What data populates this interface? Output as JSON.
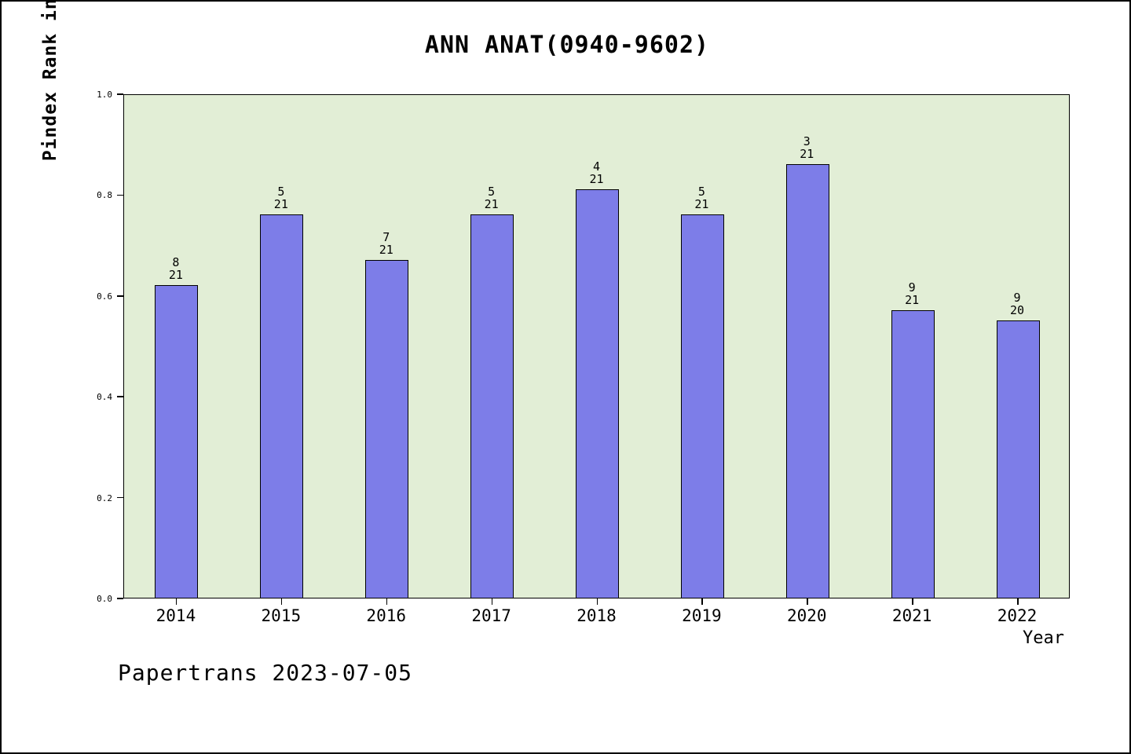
{
  "chart": {
    "title": "ANN ANAT(0940-9602)",
    "ylabel": "Pindex Rank in ANATOMY & MORPHOLOGY",
    "xlabel": "Year",
    "footer": "Papertrans 2023-07-05",
    "colors": {
      "bar_fill": "#7d7de8",
      "bar_border": "#000000",
      "plot_background": "#e2eed6",
      "page_background": "#ffffff",
      "text": "#000000"
    }
  },
  "chart_data": {
    "type": "bar",
    "title": "ANN ANAT(0940-9602)",
    "xlabel": "Year",
    "ylabel": "Pindex Rank in ANATOMY & MORPHOLOGY",
    "categories": [
      "2014",
      "2015",
      "2016",
      "2017",
      "2018",
      "2019",
      "2020",
      "2021",
      "2022"
    ],
    "values": [
      0.62,
      0.76,
      0.67,
      0.76,
      0.81,
      0.76,
      0.86,
      0.57,
      0.55
    ],
    "bar_labels": [
      {
        "numerator": "8",
        "denominator": "21"
      },
      {
        "numerator": "5",
        "denominator": "21"
      },
      {
        "numerator": "7",
        "denominator": "21"
      },
      {
        "numerator": "5",
        "denominator": "21"
      },
      {
        "numerator": "4",
        "denominator": "21"
      },
      {
        "numerator": "5",
        "denominator": "21"
      },
      {
        "numerator": "3",
        "denominator": "21"
      },
      {
        "numerator": "9",
        "denominator": "21"
      },
      {
        "numerator": "9",
        "denominator": "20"
      }
    ],
    "ylim": [
      0.0,
      1.0
    ],
    "yticks": [
      "0.0",
      "0.2",
      "0.4",
      "0.6",
      "0.8",
      "1.0"
    ],
    "grid": false,
    "legend": "none",
    "annotation": "Papertrans 2023-07-05"
  }
}
